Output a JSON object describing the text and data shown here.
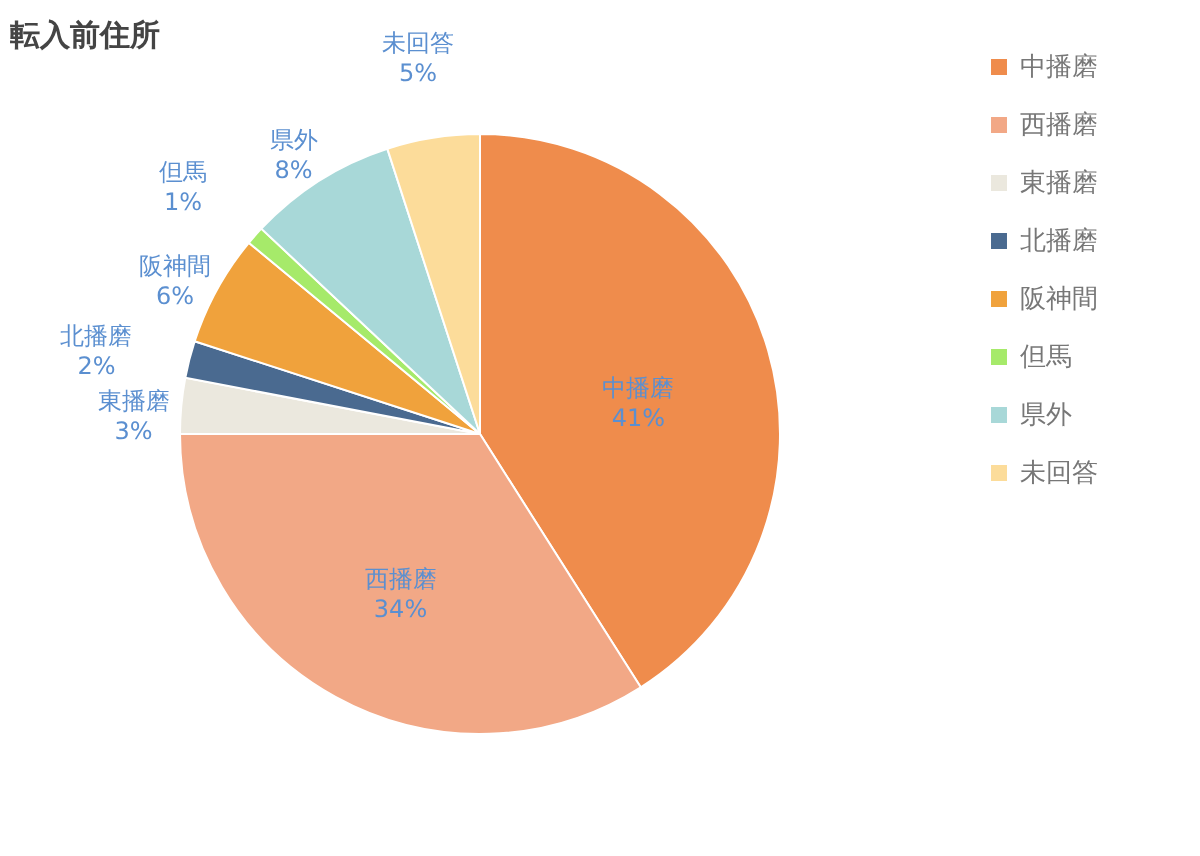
{
  "chart_data": {
    "type": "pie",
    "title": "転入前住所",
    "categories": [
      "中播磨",
      "西播磨",
      "東播磨",
      "北播磨",
      "阪神間",
      "但馬",
      "県外",
      "未回答"
    ],
    "values": [
      41,
      34,
      3,
      2,
      6,
      1,
      8,
      5
    ],
    "value_labels": [
      "41%",
      "34%",
      "3%",
      "2%",
      "6%",
      "1%",
      "8%",
      "5%"
    ],
    "colors": [
      "#ef8c4c",
      "#f2a886",
      "#ebe8de",
      "#4a6a90",
      "#f0a23c",
      "#a6ea6a",
      "#a8d8d8",
      "#fcdc9a"
    ],
    "legend": "right"
  }
}
